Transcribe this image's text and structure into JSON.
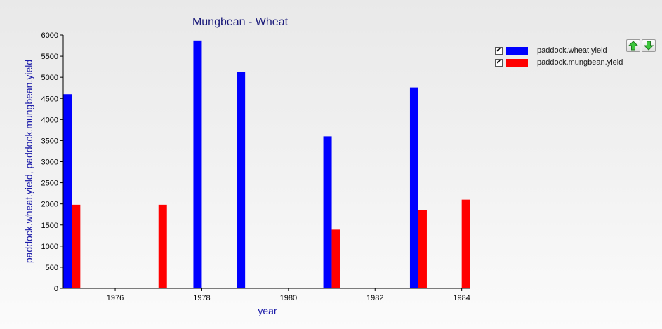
{
  "legend": {
    "items": [
      {
        "label": "paddock.wheat.yield",
        "checked": true,
        "color": "#0000ff"
      },
      {
        "label": "paddock.mungbean.yield",
        "checked": true,
        "color": "#ff0000"
      }
    ],
    "move_up_icon": "arrow-up-icon",
    "move_down_icon": "arrow-down-icon",
    "check_mark": "✔"
  },
  "chart_data": {
    "type": "bar",
    "title": "Mungbean - Wheat",
    "xlabel": "year",
    "ylabel": "paddock.wheat.yield, paddock.mungbean.yield",
    "xlim": [
      1974.8,
      1984.2
    ],
    "ylim": [
      0,
      6000
    ],
    "x_ticks": [
      1976,
      1978,
      1980,
      1982,
      1984
    ],
    "y_ticks": [
      0,
      500,
      1000,
      1500,
      2000,
      2500,
      3000,
      3500,
      4000,
      4500,
      5000,
      5500,
      6000
    ],
    "grid": false,
    "legend_position": "right",
    "series": [
      {
        "name": "paddock.wheat.yield",
        "color": "#0000ff",
        "points": [
          {
            "x": 1975,
            "y": 4600
          },
          {
            "x": 1978,
            "y": 5870
          },
          {
            "x": 1979,
            "y": 5120
          },
          {
            "x": 1981,
            "y": 3600
          },
          {
            "x": 1983,
            "y": 4760
          }
        ]
      },
      {
        "name": "paddock.mungbean.yield",
        "color": "#ff0000",
        "points": [
          {
            "x": 1975,
            "y": 1980
          },
          {
            "x": 1977,
            "y": 1980
          },
          {
            "x": 1981,
            "y": 1390
          },
          {
            "x": 1983,
            "y": 1850
          },
          {
            "x": 1984,
            "y": 2100
          }
        ]
      }
    ]
  }
}
